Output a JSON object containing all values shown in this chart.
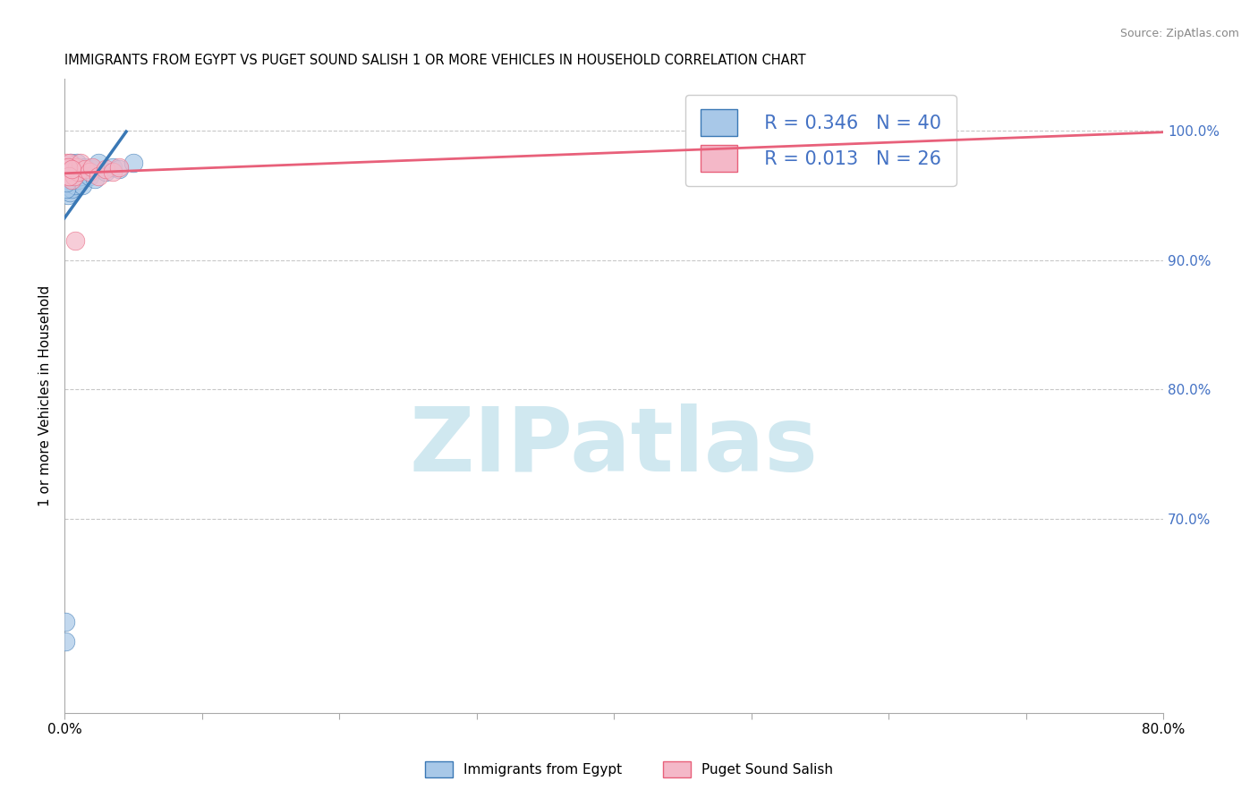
{
  "title": "IMMIGRANTS FROM EGYPT VS PUGET SOUND SALISH 1 OR MORE VEHICLES IN HOUSEHOLD CORRELATION CHART",
  "source": "Source: ZipAtlas.com",
  "ylabel": "1 or more Vehicles in Household",
  "right_yticks": [
    70.0,
    80.0,
    90.0,
    100.0
  ],
  "legend_label1": "Immigrants from Egypt",
  "legend_label2": "Puget Sound Salish",
  "R1": 0.346,
  "N1": 40,
  "R2": 0.013,
  "N2": 26,
  "blue_color": "#a8c8e8",
  "pink_color": "#f4b8c8",
  "blue_line_color": "#3a78b5",
  "pink_line_color": "#e8607a",
  "blue_x": [
    0.05,
    0.08,
    0.12,
    0.15,
    0.18,
    0.2,
    0.22,
    0.25,
    0.28,
    0.3,
    0.32,
    0.35,
    0.38,
    0.4,
    0.42,
    0.45,
    0.48,
    0.5,
    0.55,
    0.6,
    0.65,
    0.7,
    0.8,
    0.9,
    1.0,
    1.1,
    1.2,
    1.3,
    1.5,
    1.8,
    2.0,
    2.2,
    2.5,
    3.0,
    3.5,
    4.0,
    5.0,
    0.1,
    0.15,
    0.2
  ],
  "blue_y": [
    62.0,
    60.5,
    96.2,
    96.5,
    95.8,
    97.0,
    96.3,
    95.5,
    95.0,
    96.8,
    96.2,
    97.2,
    96.0,
    95.2,
    96.8,
    97.5,
    96.5,
    96.0,
    95.5,
    97.0,
    96.8,
    96.3,
    95.8,
    97.5,
    96.2,
    97.0,
    96.5,
    95.8,
    97.2,
    96.5,
    97.0,
    96.3,
    97.5,
    96.8,
    97.2,
    97.0,
    97.5,
    95.5,
    96.0,
    97.0
  ],
  "pink_x": [
    0.05,
    0.1,
    0.15,
    0.18,
    0.22,
    0.28,
    0.32,
    0.38,
    0.42,
    0.5,
    0.6,
    0.7,
    0.8,
    0.9,
    1.0,
    1.2,
    1.5,
    0.25,
    0.35,
    0.55,
    1.8,
    2.0,
    2.5,
    3.0,
    3.5,
    4.0
  ],
  "pink_y": [
    97.0,
    97.5,
    97.2,
    96.8,
    97.0,
    96.5,
    97.2,
    96.8,
    97.5,
    96.2,
    97.0,
    96.5,
    91.5,
    97.2,
    96.8,
    97.5,
    97.0,
    97.2,
    96.5,
    97.0,
    96.8,
    97.2,
    96.5,
    97.0,
    96.8,
    97.2
  ],
  "blue_line_x0": 0.0,
  "blue_line_x1": 4.5,
  "pink_line_x0": 0.0,
  "pink_line_x1": 80.0,
  "xlim": [
    0,
    80
  ],
  "ylim_bottom": 55,
  "ylim_top": 104,
  "x_tick_positions": [
    0,
    10,
    20,
    30,
    40,
    50,
    60,
    70,
    80
  ],
  "watermark_text": "ZIPatlas",
  "watermark_color": "#d0e8f0",
  "watermark_fontsize": 72
}
